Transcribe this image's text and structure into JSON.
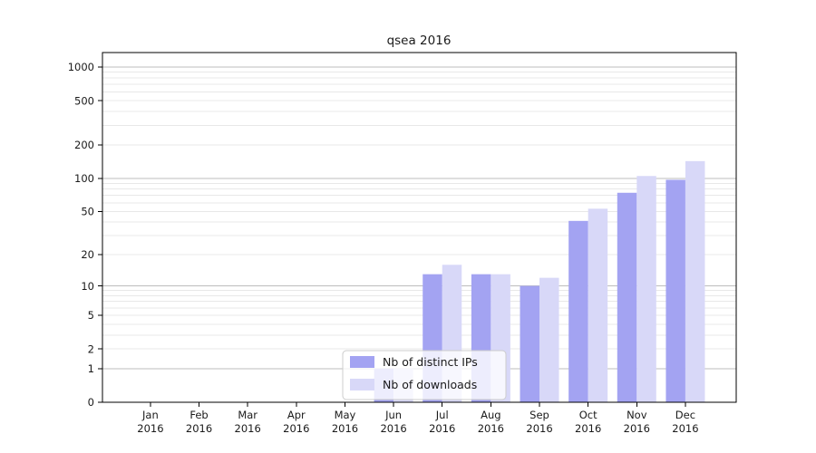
{
  "chart_data": {
    "type": "bar",
    "title": "qsea 2016",
    "categories": [
      "Jan 2016",
      "Feb 2016",
      "Mar 2016",
      "Apr 2016",
      "May 2016",
      "Jun 2016",
      "Jul 2016",
      "Aug 2016",
      "Sep 2016",
      "Oct 2016",
      "Nov 2016",
      "Dec 2016"
    ],
    "month_labels": [
      "Jan",
      "Feb",
      "Mar",
      "Apr",
      "May",
      "Jun",
      "Jul",
      "Aug",
      "Sep",
      "Oct",
      "Nov",
      "Dec"
    ],
    "year_line": "2016",
    "series": [
      {
        "name": "Nb of distinct IPs",
        "color": "#a3a3f2",
        "values": [
          0,
          0,
          0,
          0,
          0,
          1,
          13,
          13,
          10,
          41,
          74,
          97
        ]
      },
      {
        "name": "Nb of downloads",
        "color": "#d8d8f8",
        "values": [
          0,
          0,
          0,
          0,
          0,
          1,
          16,
          13,
          12,
          53,
          105,
          143
        ]
      }
    ],
    "y_ticks": [
      0,
      1,
      2,
      5,
      10,
      20,
      50,
      100,
      200,
      500,
      1000
    ],
    "y_scale": "log10(value+1)",
    "ylim": [
      0,
      1350
    ],
    "xlabel": "",
    "ylabel": "",
    "grid": "horizontal, major (decades) + minor",
    "legend_position": "inside plot, lower center-left"
  },
  "colors": {
    "background": "#ffffff",
    "axis": "#000000",
    "grid_major": "#bdbdbd",
    "grid_minor": "#e8e8e8",
    "text": "#1a1a1a",
    "legend_border": "#cccccc",
    "legend_bg_rgba": "rgba(255,255,255,0.8)"
  }
}
